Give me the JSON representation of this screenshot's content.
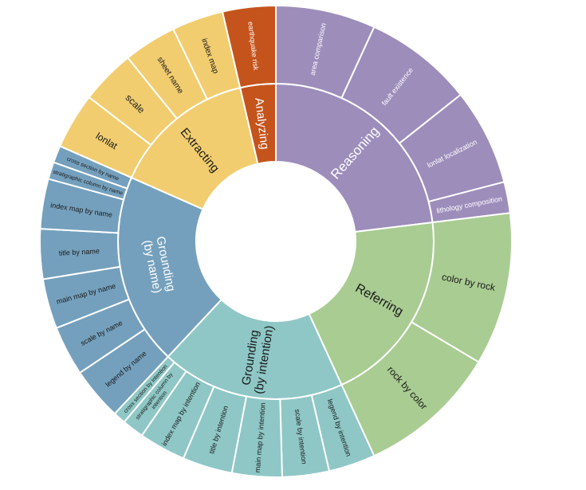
{
  "chart_data": {
    "type": "sunburst",
    "colors": {
      "Reasoning": "#9d8dbb",
      "Referring": "#a9cc92",
      "Grounding (by intention)": "#8ec7c6",
      "Grounding (by name)": "#74a0bd",
      "Extracting": "#f1cd6f",
      "Analyzing": "#c4541c"
    },
    "categories": [
      {
        "name": "Reasoning",
        "children": [
          {
            "name": "area comparison",
            "value": 3.2
          },
          {
            "name": "fault existence",
            "value": 3.5
          },
          {
            "name": "lonlat localization",
            "value": 3.1
          },
          {
            "name": "lithology composition",
            "value": 1.0
          }
        ]
      },
      {
        "name": "Referring",
        "children": [
          {
            "name": "color by rock",
            "value": 4.9
          },
          {
            "name": "rock by color",
            "value": 4.5
          }
        ]
      },
      {
        "name": "Grounding (by intention)",
        "children": [
          {
            "name": "legend by intention",
            "value": 1.5
          },
          {
            "name": "scale by intention",
            "value": 1.5
          },
          {
            "name": "main map by intention",
            "value": 1.6
          },
          {
            "name": "title by intention",
            "value": 1.6
          },
          {
            "name": "index map by intention",
            "value": 1.5
          },
          {
            "name": "stratigraphic column by intention",
            "value": 0.7
          },
          {
            "name": "cross section by intention",
            "value": 0.4
          }
        ]
      },
      {
        "name": "Grounding (by name)",
        "children": [
          {
            "name": "legend by name",
            "value": 1.7
          },
          {
            "name": "scale by name",
            "value": 1.6
          },
          {
            "name": "main map by name",
            "value": 1.6
          },
          {
            "name": "title by name",
            "value": 1.6
          },
          {
            "name": "index map by name",
            "value": 1.6
          },
          {
            "name": "stratigraphic column by name",
            "value": 0.55
          },
          {
            "name": "cross section by name",
            "value": 0.55
          }
        ]
      },
      {
        "name": "Extracting",
        "children": [
          {
            "name": "lonlat",
            "value": 1.8
          },
          {
            "name": "scale",
            "value": 1.75
          },
          {
            "name": "sheet name",
            "value": 1.7
          },
          {
            "name": "index map",
            "value": 1.65
          }
        ]
      },
      {
        "name": "Analyzing",
        "children": [
          {
            "name": "earthquake risk",
            "value": 1.7
          }
        ]
      }
    ]
  }
}
